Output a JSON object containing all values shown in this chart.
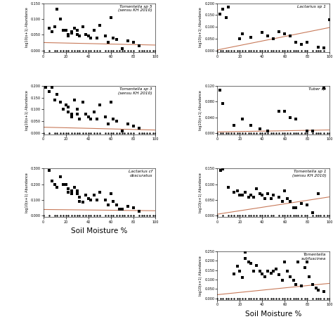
{
  "panels": [
    {
      "title": "Tomentella sp 5\n(sensu KH 2010)",
      "ylabel": "log10(x+1) Abundance",
      "xlim": [
        0,
        100
      ],
      "ylim": [
        0,
        0.15
      ],
      "ytick_vals": [
        0.0,
        0.05,
        0.1,
        0.15
      ],
      "ytick_labels": [
        "0.000",
        "0.050",
        "0.100",
        "0.150"
      ],
      "trend_intercept": 0.025,
      "trend_slope": -8e-05,
      "points_scatter": [
        [
          2,
          0.155
        ],
        [
          5,
          0.07
        ],
        [
          8,
          0.06
        ],
        [
          10,
          0.075
        ],
        [
          12,
          0.13
        ],
        [
          15,
          0.1
        ],
        [
          18,
          0.065
        ],
        [
          20,
          0.065
        ],
        [
          22,
          0.05
        ],
        [
          22,
          0.045
        ],
        [
          25,
          0.06
        ],
        [
          25,
          0.055
        ],
        [
          28,
          0.07
        ],
        [
          30,
          0.065
        ],
        [
          30,
          0.05
        ],
        [
          32,
          0.045
        ],
        [
          35,
          0.075
        ],
        [
          38,
          0.05
        ],
        [
          40,
          0.045
        ],
        [
          42,
          0.04
        ],
        [
          45,
          0.065
        ],
        [
          48,
          0.04
        ],
        [
          50,
          0.08
        ],
        [
          55,
          0.045
        ],
        [
          58,
          0.025
        ],
        [
          60,
          0.105
        ],
        [
          62,
          0.04
        ],
        [
          65,
          0.035
        ],
        [
          70,
          0.005
        ],
        [
          75,
          0.03
        ],
        [
          80,
          0.025
        ],
        [
          85,
          0.015
        ]
      ],
      "points_zero": [
        0,
        5,
        10,
        12,
        15,
        18,
        20,
        22,
        25,
        28,
        30,
        32,
        35,
        38,
        40,
        42,
        45,
        48,
        50,
        55,
        58,
        60,
        62,
        65,
        68,
        70,
        72,
        75,
        78,
        80,
        85,
        88,
        90,
        92,
        95,
        98,
        100
      ],
      "row": 0,
      "col": 0
    },
    {
      "title": "Lactarius sp 1",
      "ylabel": "log10(x+1) Abundance",
      "xlim": [
        0,
        100
      ],
      "ylim": [
        0,
        0.2
      ],
      "ytick_vals": [
        0.0,
        0.05,
        0.1,
        0.15,
        0.2
      ],
      "ytick_labels": [
        "0.000",
        "0.050",
        "0.100",
        "0.150",
        "0.200"
      ],
      "trend_intercept": 0.002,
      "trend_slope": 0.00095,
      "points_scatter": [
        [
          2,
          0.155
        ],
        [
          5,
          0.175
        ],
        [
          8,
          0.14
        ],
        [
          10,
          0.185
        ],
        [
          20,
          0.05
        ],
        [
          22,
          0.07
        ],
        [
          30,
          0.055
        ],
        [
          40,
          0.075
        ],
        [
          45,
          0.06
        ],
        [
          50,
          0.05
        ],
        [
          55,
          0.08
        ],
        [
          60,
          0.07
        ],
        [
          65,
          0.06
        ],
        [
          70,
          0.035
        ],
        [
          75,
          0.025
        ],
        [
          80,
          0.035
        ],
        [
          90,
          0.015
        ],
        [
          95,
          0.01
        ],
        [
          100,
          0.13
        ]
      ],
      "points_zero": [
        0,
        3,
        5,
        8,
        10,
        12,
        15,
        18,
        20,
        22,
        25,
        28,
        30,
        32,
        35,
        38,
        40,
        42,
        45,
        48,
        50,
        52,
        55,
        58,
        60,
        62,
        65,
        68,
        70,
        72,
        75,
        78,
        80,
        85,
        88,
        90,
        92,
        95
      ],
      "row": 0,
      "col": 1
    },
    {
      "title": "Tomentella sp 3\n(sensu KH 2010)",
      "ylabel": "log10(x+1) Abundance",
      "xlim": [
        0,
        100
      ],
      "ylim": [
        0,
        0.2
      ],
      "ytick_vals": [
        0.0,
        0.05,
        0.1,
        0.15,
        0.2
      ],
      "ytick_labels": [
        "0.000",
        "0.050",
        "0.100",
        "0.150",
        "0.200"
      ],
      "trend_intercept": 0.025,
      "trend_slope": -0.00012,
      "points_scatter": [
        [
          2,
          0.195
        ],
        [
          5,
          0.175
        ],
        [
          8,
          0.195
        ],
        [
          10,
          0.14
        ],
        [
          12,
          0.165
        ],
        [
          15,
          0.13
        ],
        [
          18,
          0.1
        ],
        [
          20,
          0.12
        ],
        [
          22,
          0.11
        ],
        [
          22,
          0.09
        ],
        [
          25,
          0.08
        ],
        [
          25,
          0.07
        ],
        [
          28,
          0.14
        ],
        [
          30,
          0.1
        ],
        [
          30,
          0.08
        ],
        [
          32,
          0.06
        ],
        [
          35,
          0.13
        ],
        [
          38,
          0.08
        ],
        [
          40,
          0.07
        ],
        [
          42,
          0.06
        ],
        [
          45,
          0.09
        ],
        [
          48,
          0.06
        ],
        [
          50,
          0.12
        ],
        [
          55,
          0.07
        ],
        [
          58,
          0.04
        ],
        [
          60,
          0.13
        ],
        [
          62,
          0.06
        ],
        [
          65,
          0.05
        ],
        [
          70,
          0.01
        ],
        [
          75,
          0.04
        ],
        [
          80,
          0.03
        ],
        [
          85,
          0.02
        ]
      ],
      "points_zero": [
        0,
        5,
        10,
        12,
        15,
        18,
        20,
        22,
        25,
        28,
        30,
        32,
        35,
        38,
        40,
        42,
        45,
        48,
        50,
        55,
        58,
        60,
        62,
        65,
        68,
        70,
        72,
        75,
        78,
        80,
        85,
        88,
        90,
        92,
        95,
        98,
        100
      ],
      "row": 1,
      "col": 0
    },
    {
      "title": "Tuber sp",
      "ylabel": "log10(x+1) Abundance",
      "xlim": [
        0,
        100
      ],
      "ylim": [
        0,
        0.12
      ],
      "ytick_vals": [
        0.0,
        0.04,
        0.08,
        0.12
      ],
      "ytick_labels": [
        "0.000",
        "0.040",
        "0.080",
        "0.120"
      ],
      "trend_intercept": 0.003,
      "trend_slope": 5e-05,
      "points_scatter": [
        [
          2,
          0.11
        ],
        [
          5,
          0.075
        ],
        [
          15,
          0.02
        ],
        [
          22,
          0.035
        ],
        [
          30,
          0.02
        ],
        [
          38,
          0.01
        ],
        [
          45,
          0.005
        ],
        [
          55,
          0.055
        ],
        [
          60,
          0.055
        ],
        [
          65,
          0.04
        ],
        [
          70,
          0.035
        ],
        [
          80,
          0.005
        ],
        [
          85,
          0.005
        ],
        [
          95,
          0.115
        ]
      ],
      "points_zero": [
        0,
        3,
        5,
        8,
        10,
        12,
        15,
        18,
        20,
        22,
        25,
        28,
        30,
        32,
        35,
        38,
        40,
        42,
        45,
        48,
        50,
        52,
        55,
        58,
        60,
        62,
        65,
        68,
        70,
        72,
        75,
        78,
        80,
        85,
        88,
        90,
        92,
        95,
        98,
        100
      ],
      "row": 1,
      "col": 1
    },
    {
      "title": "Lactarius cf\nobscuratus",
      "ylabel": "log10(x+1) Abundance",
      "xlim": [
        0,
        100
      ],
      "ylim": [
        0,
        0.3
      ],
      "ytick_vals": [
        0.0,
        0.1,
        0.2,
        0.3
      ],
      "ytick_labels": [
        "0.000",
        "0.100",
        "0.200",
        "0.300"
      ],
      "trend_intercept": 0.04,
      "trend_slope": -8e-05,
      "points_scatter": [
        [
          5,
          0.29
        ],
        [
          8,
          0.22
        ],
        [
          10,
          0.2
        ],
        [
          12,
          0.18
        ],
        [
          15,
          0.25
        ],
        [
          18,
          0.2
        ],
        [
          20,
          0.2
        ],
        [
          22,
          0.17
        ],
        [
          22,
          0.15
        ],
        [
          25,
          0.16
        ],
        [
          25,
          0.14
        ],
        [
          28,
          0.18
        ],
        [
          30,
          0.16
        ],
        [
          30,
          0.14
        ],
        [
          32,
          0.12
        ],
        [
          32,
          0.09
        ],
        [
          35,
          0.085
        ],
        [
          38,
          0.13
        ],
        [
          40,
          0.11
        ],
        [
          42,
          0.1
        ],
        [
          45,
          0.13
        ],
        [
          48,
          0.1
        ],
        [
          50,
          0.15
        ],
        [
          55,
          0.1
        ],
        [
          58,
          0.07
        ],
        [
          60,
          0.14
        ],
        [
          62,
          0.09
        ],
        [
          65,
          0.07
        ],
        [
          68,
          0.04
        ],
        [
          70,
          0.04
        ],
        [
          75,
          0.06
        ],
        [
          80,
          0.05
        ],
        [
          85,
          0.03
        ]
      ],
      "points_zero": [
        0,
        5,
        10,
        12,
        15,
        18,
        20,
        22,
        25,
        28,
        30,
        32,
        35,
        38,
        40,
        42,
        45,
        48,
        50,
        55,
        58,
        60,
        62,
        65,
        68,
        70,
        72,
        75,
        78,
        80,
        85,
        88,
        90,
        92,
        95,
        98,
        100
      ],
      "row": 2,
      "col": 0
    },
    {
      "title": "Tomentella sp 1\n(sensu KH 2010)",
      "ylabel": "log10(x+1) Abundance",
      "xlim": [
        0,
        100
      ],
      "ylim": [
        0,
        0.15
      ],
      "ytick_vals": [
        0.0,
        0.05,
        0.1,
        0.15
      ],
      "ytick_labels": [
        "0.000",
        "0.050",
        "0.100",
        "0.150"
      ],
      "trend_intercept": 0.005,
      "trend_slope": 0.00055,
      "points_scatter": [
        [
          2,
          0.16
        ],
        [
          3,
          0.145
        ],
        [
          5,
          0.148
        ],
        [
          10,
          0.09
        ],
        [
          15,
          0.075
        ],
        [
          18,
          0.08
        ],
        [
          20,
          0.065
        ],
        [
          22,
          0.065
        ],
        [
          25,
          0.075
        ],
        [
          28,
          0.06
        ],
        [
          30,
          0.065
        ],
        [
          32,
          0.06
        ],
        [
          35,
          0.085
        ],
        [
          38,
          0.07
        ],
        [
          40,
          0.065
        ],
        [
          42,
          0.055
        ],
        [
          45,
          0.07
        ],
        [
          48,
          0.055
        ],
        [
          50,
          0.065
        ],
        [
          55,
          0.06
        ],
        [
          58,
          0.045
        ],
        [
          60,
          0.08
        ],
        [
          62,
          0.055
        ],
        [
          65,
          0.045
        ],
        [
          68,
          0.025
        ],
        [
          70,
          0.025
        ],
        [
          75,
          0.04
        ],
        [
          80,
          0.035
        ],
        [
          85,
          0.01
        ],
        [
          90,
          0.07
        ]
      ],
      "points_zero": [
        0,
        5,
        10,
        12,
        15,
        18,
        20,
        22,
        25,
        28,
        30,
        32,
        35,
        38,
        40,
        42,
        45,
        48,
        50,
        55,
        58,
        60,
        62,
        65,
        68,
        70,
        72,
        75,
        78,
        80,
        85,
        88,
        90,
        92,
        95,
        98,
        100
      ],
      "row": 2,
      "col": 1
    },
    {
      "title": "Tomentella\nsubfuscinea",
      "ylabel": "log10(x+1) Abundance",
      "xlim": [
        0,
        100
      ],
      "ylim": [
        0,
        0.25
      ],
      "ytick_vals": [
        0.0,
        0.05,
        0.1,
        0.15,
        0.2,
        0.25
      ],
      "ytick_labels": [
        "0.000",
        "0.050",
        "0.100",
        "0.150",
        "0.200",
        "0.250"
      ],
      "trend_intercept": 0.02,
      "trend_slope": 0.0006,
      "points_scatter": [
        [
          15,
          0.13
        ],
        [
          18,
          0.17
        ],
        [
          20,
          0.145
        ],
        [
          22,
          0.11
        ],
        [
          25,
          0.245
        ],
        [
          25,
          0.21
        ],
        [
          28,
          0.195
        ],
        [
          30,
          0.185
        ],
        [
          32,
          0.145
        ],
        [
          35,
          0.175
        ],
        [
          38,
          0.145
        ],
        [
          40,
          0.13
        ],
        [
          42,
          0.115
        ],
        [
          45,
          0.145
        ],
        [
          48,
          0.135
        ],
        [
          50,
          0.145
        ],
        [
          52,
          0.155
        ],
        [
          55,
          0.125
        ],
        [
          58,
          0.095
        ],
        [
          60,
          0.195
        ],
        [
          62,
          0.145
        ],
        [
          65,
          0.115
        ],
        [
          68,
          0.095
        ],
        [
          70,
          0.075
        ],
        [
          72,
          0.195
        ],
        [
          75,
          0.065
        ],
        [
          78,
          0.165
        ],
        [
          80,
          0.195
        ],
        [
          82,
          0.115
        ],
        [
          85,
          0.075
        ],
        [
          88,
          0.055
        ],
        [
          90,
          0.045
        ],
        [
          95,
          0.035
        ]
      ],
      "points_zero": [
        0,
        3,
        5,
        8,
        10,
        12,
        15,
        18,
        20,
        22,
        25,
        28,
        30,
        32,
        35,
        38,
        40,
        42,
        45,
        48,
        50,
        52,
        55,
        58,
        60,
        62,
        65,
        68,
        70,
        72,
        75,
        78,
        80,
        85,
        88,
        90,
        92,
        95,
        98,
        100
      ],
      "row": 3,
      "col": 1
    }
  ],
  "scatter_marker": "s",
  "scatter_size": 5,
  "scatter_color": "black",
  "zero_marker": ".",
  "zero_size": 2,
  "zero_color": "black",
  "trend_color": "#c87a5a",
  "trend_lw": 0.8,
  "bg_color": "white",
  "xlabel": "Soil Moisture %",
  "figsize": [
    4.74,
    4.53
  ],
  "dpi": 100
}
